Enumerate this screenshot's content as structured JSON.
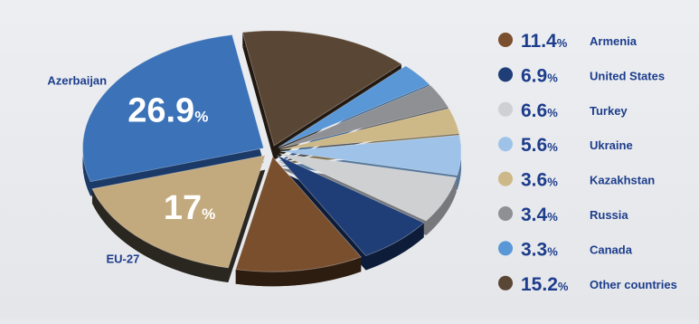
{
  "chart_data": {
    "type": "pie",
    "percent_sign": "%",
    "slices": [
      {
        "name": "Azerbaijan",
        "value": 26.9,
        "value_label": "26.9",
        "color": "#3b72b8",
        "shade": "#1b3a68",
        "side_label": "Azerbaijan"
      },
      {
        "name": "EU-27",
        "value": 17,
        "value_label": "17",
        "color": "#c3aa7e",
        "shade": "#2a2620",
        "side_label": "EU-27"
      },
      {
        "name": "Armenia",
        "value": 11.4,
        "value_label": "11.4",
        "color": "#7a4f2e",
        "shade": "#2d1c10"
      },
      {
        "name": "United States",
        "value": 6.9,
        "value_label": "6.9",
        "color": "#1f3e78",
        "shade": "#0d1c38"
      },
      {
        "name": "Turkey",
        "value": 6.6,
        "value_label": "6.6",
        "color": "#cfd0d2",
        "shade": "#77787b"
      },
      {
        "name": "Ukraine",
        "value": 5.6,
        "value_label": "5.6",
        "color": "#9fc3e8",
        "shade": "#56779a"
      },
      {
        "name": "Kazakhstan",
        "value": 3.6,
        "value_label": "3.6",
        "color": "#cdb887",
        "shade": "#7c6d4c"
      },
      {
        "name": "Russia",
        "value": 3.4,
        "value_label": "3.4",
        "color": "#8f9093",
        "shade": "#4b4c4f"
      },
      {
        "name": "Canada",
        "value": 3.3,
        "value_label": "3.3",
        "color": "#5a97d6",
        "shade": "#2c5480"
      },
      {
        "name": "Other countries",
        "value": 15.2,
        "value_label": "15.2",
        "color": "#5a4634",
        "shade": "#211911"
      }
    ],
    "legend": [
      {
        "value_label": "11.4",
        "name": "Armenia",
        "color": "#7a4f2e"
      },
      {
        "value_label": "6.9",
        "name": "United States",
        "color": "#1f3e78"
      },
      {
        "value_label": "6.6",
        "name": "Turkey",
        "color": "#cfd0d2"
      },
      {
        "value_label": "5.6",
        "name": "Ukraine",
        "color": "#9fc3e8"
      },
      {
        "value_label": "3.6",
        "name": "Kazakhstan",
        "color": "#cdb887"
      },
      {
        "value_label": "3.4",
        "name": "Russia",
        "color": "#8f9093"
      },
      {
        "value_label": "3.3",
        "name": "Canada",
        "color": "#5a97d6"
      },
      {
        "value_label": "15.2",
        "name": "Other countries",
        "color": "#5a4634"
      }
    ],
    "legend_position": "right"
  }
}
